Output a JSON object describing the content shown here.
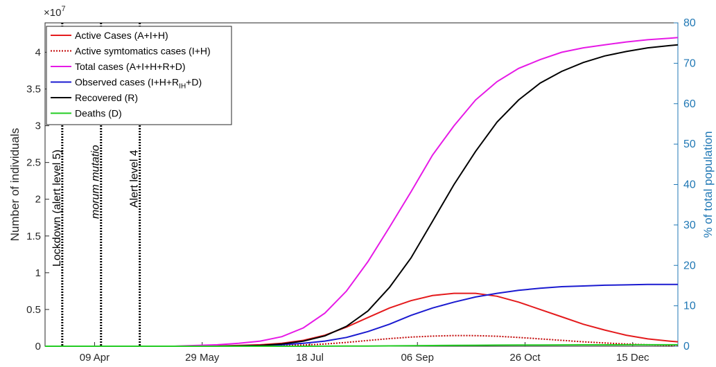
{
  "chart_data": {
    "type": "line",
    "y_axis_label": "Number of individuals",
    "y2_axis_label": "% of total population",
    "y_multiplier": "×10",
    "y_multiplier_exponent": "7",
    "x": [
      0,
      10,
      20,
      30,
      40,
      50,
      60,
      70,
      80,
      90,
      100,
      110,
      120,
      130,
      140,
      150,
      160,
      170,
      180,
      190,
      200,
      210,
      220,
      230,
      240,
      250,
      260,
      270,
      280,
      290,
      294
    ],
    "xlim": [
      0,
      294
    ],
    "xticks": [
      {
        "value": 23,
        "label": "09 Apr"
      },
      {
        "value": 73,
        "label": "29 May"
      },
      {
        "value": 123,
        "label": "18 Jul"
      },
      {
        "value": 173,
        "label": "06 Sep"
      },
      {
        "value": 223,
        "label": "26 Oct"
      },
      {
        "value": 273,
        "label": "15 Dec"
      }
    ],
    "ylim": [
      0,
      4.4
    ],
    "yticks": [
      0,
      0.5,
      1,
      1.5,
      2,
      2.5,
      3,
      3.5,
      4
    ],
    "y2lim": [
      0,
      80
    ],
    "y2ticks": [
      0,
      10,
      20,
      30,
      40,
      50,
      60,
      70,
      80
    ],
    "y2_color": "#1f77b4",
    "events": [
      {
        "x": 8,
        "label": "Lockdown (alert level 5)",
        "italic": false
      },
      {
        "x": 26,
        "label": "morum mutatio",
        "italic": true
      },
      {
        "x": 44,
        "label": "Alert level 4",
        "italic": false
      }
    ],
    "series": [
      {
        "name": [
          "Active Cases (A+I+H)"
        ],
        "color": "#e41a1c",
        "dashed": false,
        "values": [
          0,
          0,
          0,
          0,
          0,
          0,
          0,
          0,
          0.005,
          0.01,
          0.02,
          0.04,
          0.08,
          0.15,
          0.26,
          0.39,
          0.52,
          0.62,
          0.69,
          0.72,
          0.72,
          0.68,
          0.6,
          0.5,
          0.4,
          0.3,
          0.22,
          0.15,
          0.1,
          0.07,
          0.06
        ]
      },
      {
        "name": [
          "Active symtomatics cases (I+H)"
        ],
        "color": "#c00000",
        "dashed": true,
        "values": [
          0,
          0,
          0,
          0,
          0,
          0,
          0,
          0,
          0.001,
          0.002,
          0.004,
          0.008,
          0.016,
          0.03,
          0.052,
          0.078,
          0.104,
          0.124,
          0.138,
          0.145,
          0.144,
          0.136,
          0.12,
          0.1,
          0.08,
          0.06,
          0.044,
          0.03,
          0.02,
          0.014,
          0.012
        ]
      },
      {
        "name": [
          "Total cases (A+I+H+R+D)"
        ],
        "color": "#e619e6",
        "dashed": false,
        "values": [
          0,
          0,
          0,
          0,
          0,
          0,
          0,
          0.01,
          0.02,
          0.04,
          0.07,
          0.13,
          0.25,
          0.45,
          0.75,
          1.15,
          1.62,
          2.1,
          2.6,
          3.0,
          3.35,
          3.6,
          3.78,
          3.9,
          4.0,
          4.06,
          4.1,
          4.14,
          4.17,
          4.19,
          4.2
        ]
      },
      {
        "name": [
          "Observed cases (I+H+R",
          "IH",
          "+D)"
        ],
        "color": "#1a1ad0",
        "dashed": false,
        "values": [
          0,
          0,
          0,
          0,
          0,
          0,
          0,
          0,
          0,
          0.005,
          0.01,
          0.02,
          0.04,
          0.07,
          0.12,
          0.2,
          0.3,
          0.42,
          0.52,
          0.6,
          0.67,
          0.72,
          0.76,
          0.79,
          0.81,
          0.82,
          0.83,
          0.835,
          0.84,
          0.84,
          0.84
        ]
      },
      {
        "name": [
          "Recovered (R)"
        ],
        "color": "#000000",
        "dashed": false,
        "values": [
          0,
          0,
          0,
          0,
          0,
          0,
          0,
          0,
          0,
          0.005,
          0.01,
          0.03,
          0.07,
          0.14,
          0.27,
          0.48,
          0.8,
          1.2,
          1.7,
          2.2,
          2.65,
          3.05,
          3.35,
          3.58,
          3.74,
          3.86,
          3.95,
          4.01,
          4.06,
          4.09,
          4.1
        ]
      },
      {
        "name": [
          "Deaths (D)"
        ],
        "color": "#22cc22",
        "dashed": false,
        "values": [
          0,
          0,
          0,
          0,
          0,
          0,
          0,
          0,
          0,
          0,
          0,
          0,
          0,
          0.001,
          0.002,
          0.003,
          0.005,
          0.007,
          0.009,
          0.011,
          0.013,
          0.015,
          0.016,
          0.017,
          0.018,
          0.019,
          0.019,
          0.02,
          0.02,
          0.02,
          0.02
        ]
      }
    ]
  }
}
